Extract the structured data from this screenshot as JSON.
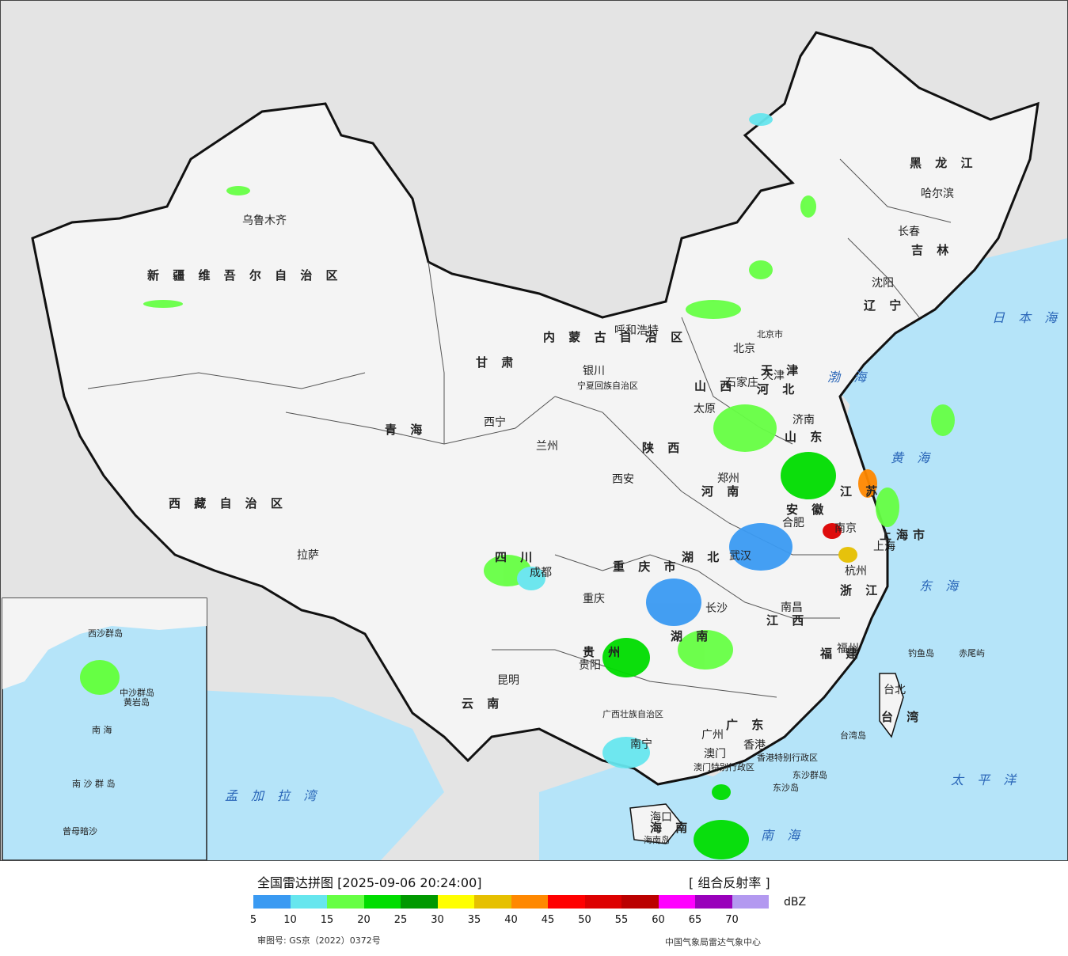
{
  "header": {
    "title": "全国雷达拼图 [2025-09-06 20:24:00]",
    "product": "[ 组合反射率 ]",
    "unit": "dBZ",
    "review_no": "审图号: GS京（2022）0372号",
    "agency": "中国气象局雷达气象中心"
  },
  "legend": {
    "colors": [
      "#3a9af2",
      "#66e6ee",
      "#66ff44",
      "#00dd00",
      "#009900",
      "#ffff00",
      "#e6c000",
      "#ff8800",
      "#ff0000",
      "#dd0000",
      "#bb0000",
      "#ff00ff",
      "#9900bb",
      "#b399f0"
    ],
    "ticks": [
      "5",
      "10",
      "15",
      "20",
      "25",
      "30",
      "35",
      "40",
      "45",
      "50",
      "55",
      "60",
      "65",
      "70"
    ]
  },
  "colors": {
    "sea": "#b5e4f9",
    "land": "#f4f4f4",
    "outside": "#e4e4e4",
    "border": "#111111"
  },
  "provinces": [
    "黑 龙 江",
    "吉 林",
    "辽 宁",
    "内 蒙 古 自 治 区",
    "新 疆 维 吾 尔 自 治 区",
    "西 藏 自 治 区",
    "青 海",
    "甘 肃",
    "宁夏回族自治区",
    "陕 西",
    "山 西",
    "河 北",
    "山 东",
    "河 南",
    "江 苏",
    "安 徽",
    "湖 北",
    "重 庆 市",
    "四 川",
    "贵 州",
    "云 南",
    "湖 南",
    "江 西",
    "浙 江",
    "福 建",
    "广 东",
    "广西壮族自治区",
    "海 南",
    "台 湾",
    "上海市",
    "北京市",
    "天 津",
    "香港特别行政区",
    "澳门特别行政区"
  ],
  "cities": [
    "哈尔滨",
    "长春",
    "沈阳",
    "乌鲁木齐",
    "呼和浩特",
    "北京",
    "天津",
    "石家庄",
    "太原",
    "济南",
    "银川",
    "西宁",
    "兰州",
    "西安",
    "郑州",
    "合肥",
    "南京",
    "上海",
    "杭州",
    "武汉",
    "成都",
    "重庆",
    "拉萨",
    "长沙",
    "南昌",
    "福州",
    "贵阳",
    "昆明",
    "南宁",
    "广州",
    "香港",
    "澳门",
    "海口",
    "台北"
  ],
  "seas": [
    "日 本 海",
    "渤 海",
    "黄 海",
    "东 海",
    "太 平 洋",
    "南 海",
    "孟 加 拉 湾"
  ],
  "islands": [
    "钓鱼岛",
    "赤尾屿",
    "台湾岛",
    "东沙群岛",
    "东沙岛",
    "海南岛"
  ],
  "inset": [
    "中沙群岛",
    "黄岩岛",
    "南 海",
    "南 沙 群 岛",
    "曾母暗沙",
    "西沙群岛"
  ]
}
